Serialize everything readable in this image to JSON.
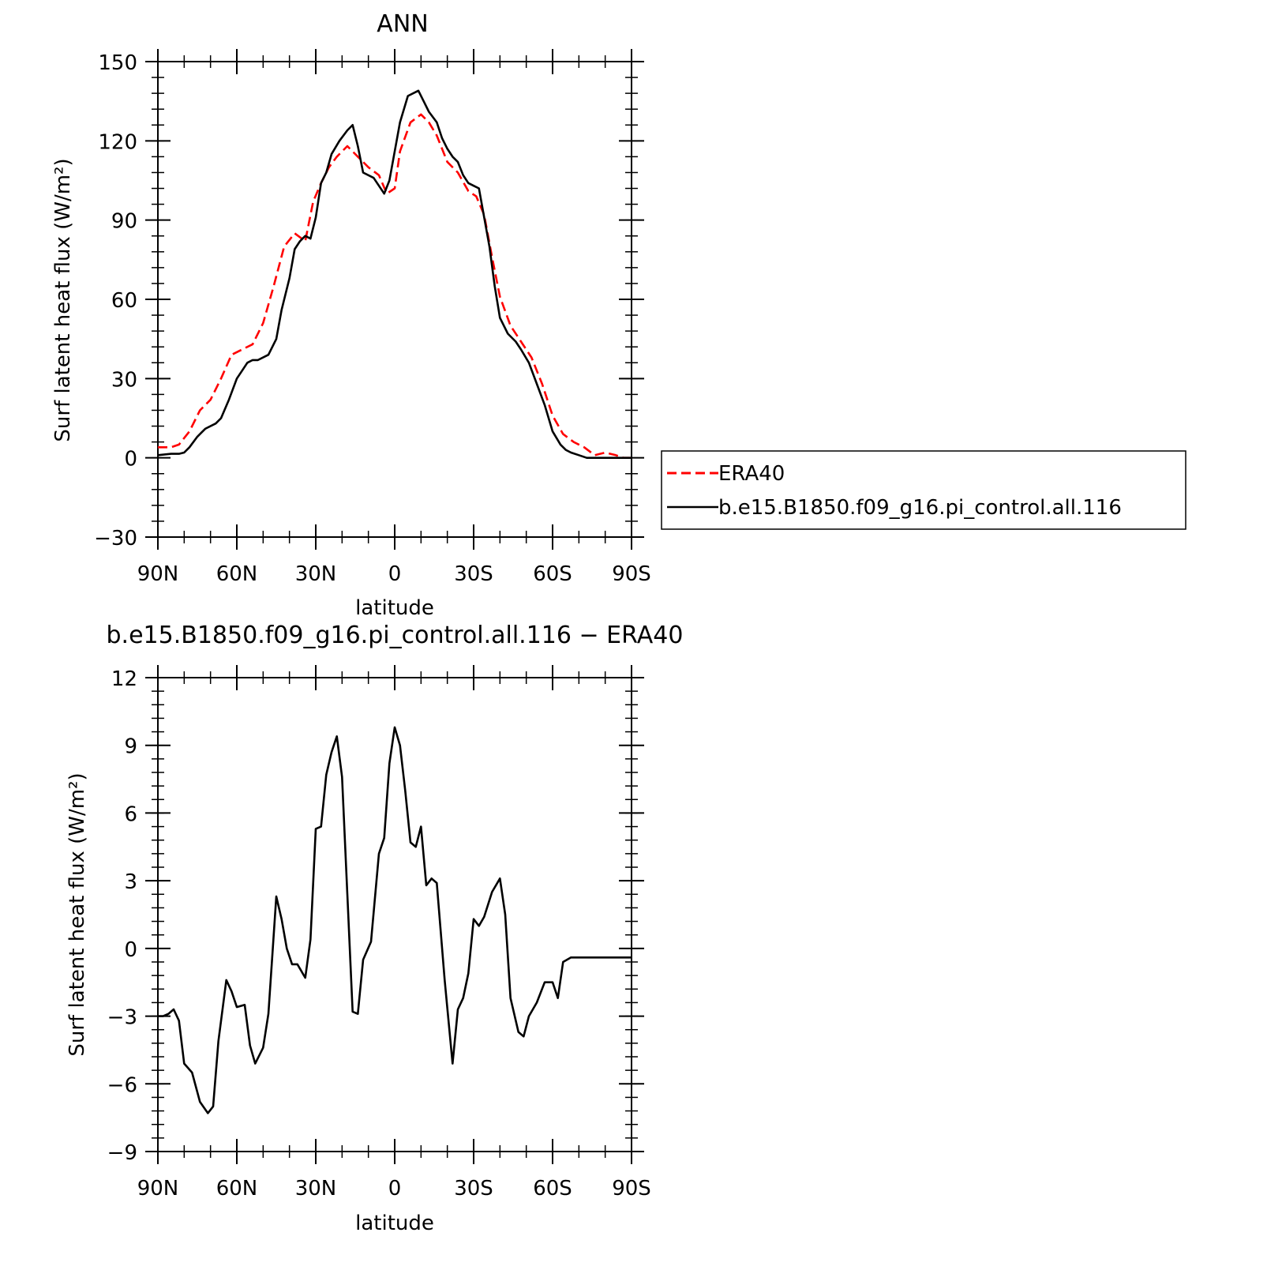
{
  "chart_data": [
    {
      "type": "line",
      "title": "ANN",
      "xlabel": "latitude",
      "ylabel": "Surf latent heat flux (W/m²)",
      "xlim": [
        90,
        -90
      ],
      "ylim": [
        -30,
        150
      ],
      "yticks": [
        "150",
        "120",
        "90",
        "60",
        "30",
        "0",
        "−30"
      ],
      "ytick_values": [
        150,
        120,
        90,
        60,
        30,
        0,
        -30
      ],
      "xticks": [
        "90N",
        "60N",
        "30N",
        "0",
        "30S",
        "60S",
        "90S"
      ],
      "xtick_values": [
        90,
        60,
        30,
        0,
        -30,
        -60,
        -90
      ],
      "legend": {
        "position": "right"
      },
      "series": [
        {
          "name": "ERA40",
          "color": "#ff0000",
          "dash": "dashed",
          "x": [
            90,
            85,
            82,
            78,
            74,
            70,
            66,
            62,
            58,
            54,
            50,
            46,
            42,
            38,
            34,
            31,
            28,
            25,
            22,
            18,
            14,
            12,
            10,
            6,
            3,
            0,
            -2,
            -6,
            -10,
            -13,
            -16,
            -20,
            -24,
            -28,
            -31,
            -34,
            -37,
            -40,
            -44,
            -48,
            -52,
            -56,
            -60,
            -64,
            -68,
            -72,
            -76,
            -80,
            -84,
            -87,
            -90
          ],
          "y": [
            4,
            4,
            5,
            10,
            18,
            22,
            30,
            39,
            41,
            43,
            51,
            65,
            80,
            85,
            82,
            97,
            104,
            110,
            114,
            118,
            114,
            112,
            110,
            107,
            100,
            102,
            116,
            127,
            130,
            127,
            122,
            112,
            108,
            101,
            99,
            92,
            76,
            61,
            50,
            44,
            38,
            28,
            16,
            9,
            6,
            4,
            1,
            2,
            1,
            0,
            0
          ]
        },
        {
          "name": "b.e15.B1850.f09_g16.pi_control.all.116",
          "color": "#000000",
          "dash": "solid",
          "x": [
            90,
            85,
            82,
            80,
            78,
            75,
            72,
            68,
            66,
            63,
            60,
            58,
            56,
            54,
            52,
            48,
            45,
            43,
            40,
            38,
            36,
            34,
            32,
            30,
            28,
            26,
            24,
            21,
            18,
            16,
            14,
            12,
            8,
            4,
            2,
            0,
            -2,
            -5,
            -9,
            -11,
            -13,
            -16,
            -18,
            -20,
            -22,
            -24,
            -26,
            -28,
            -30,
            -32,
            -36,
            -38,
            -40,
            -43,
            -46,
            -48,
            -51,
            -54,
            -57,
            -60,
            -63,
            -65,
            -67,
            -70,
            -73,
            -77,
            -80,
            -83,
            -86,
            -88,
            -90
          ],
          "y": [
            1,
            1.5,
            1.5,
            2,
            4,
            8,
            11,
            13,
            15,
            22,
            30,
            33,
            36,
            37,
            37,
            39,
            45,
            56,
            68,
            79,
            82,
            84,
            83,
            91,
            104,
            108,
            115,
            120,
            124,
            126,
            118,
            108,
            106,
            100,
            105,
            116,
            127,
            137,
            139,
            135,
            131,
            127,
            121,
            117,
            114,
            112,
            107,
            104,
            103,
            102,
            80,
            65,
            53,
            47,
            44,
            41,
            36,
            28,
            20,
            10,
            5,
            3,
            2,
            1,
            0,
            0,
            0,
            0,
            0,
            0,
            0
          ]
        }
      ]
    },
    {
      "type": "line",
      "title": "b.e15.B1850.f09_g16.pi_control.all.116 − ERA40",
      "xlabel": "latitude",
      "ylabel": "Surf latent heat flux (W/m²)",
      "xlim": [
        90,
        -90
      ],
      "ylim": [
        -9,
        12
      ],
      "yticks": [
        "12",
        "9",
        "6",
        "3",
        "0",
        "−3",
        "−6",
        "−9"
      ],
      "ytick_values": [
        12,
        9,
        6,
        3,
        0,
        -3,
        -6,
        -9
      ],
      "xticks": [
        "90N",
        "60N",
        "30N",
        "0",
        "30S",
        "60S",
        "90S"
      ],
      "xtick_values": [
        90,
        60,
        30,
        0,
        -30,
        -60,
        -90
      ],
      "series": [
        {
          "color": "#000000",
          "dash": "solid",
          "x": [
            90,
            88,
            86,
            84,
            82,
            80,
            77,
            74,
            71,
            69,
            67,
            64,
            62,
            60,
            57,
            55,
            53,
            50,
            48,
            45,
            43,
            41,
            39,
            37,
            34,
            32,
            30,
            28,
            26,
            24,
            22,
            20,
            18,
            16,
            14,
            12,
            9,
            6,
            4,
            2,
            0,
            -2,
            -4,
            -6,
            -8,
            -10,
            -12,
            -14,
            -16,
            -19,
            -22,
            -24,
            -26,
            -28,
            -30,
            -32,
            -34,
            -37,
            -40,
            -42,
            -44,
            -47,
            -49,
            -51,
            -54,
            -57,
            -60,
            -62,
            -64,
            -67,
            -69,
            -72,
            -75,
            -78,
            -81,
            -83,
            -85,
            -87,
            -88,
            -90
          ],
          "y": [
            -3,
            -3,
            -2.9,
            -2.7,
            -3.2,
            -5.1,
            -5.5,
            -6.8,
            -7.3,
            -7.0,
            -4.1,
            -1.4,
            -1.9,
            -2.6,
            -2.5,
            -4.3,
            -5.1,
            -4.4,
            -2.9,
            2.3,
            1.3,
            0.0,
            -0.7,
            -0.7,
            -1.3,
            0.4,
            5.3,
            5.4,
            7.7,
            8.7,
            9.4,
            7.6,
            2.4,
            -2.8,
            -2.9,
            -0.5,
            0.3,
            4.2,
            4.9,
            8.2,
            9.8,
            9.0,
            7.0,
            4.7,
            4.5,
            5.4,
            2.8,
            3.1,
            2.9,
            -1.4,
            -5.1,
            -2.7,
            -2.2,
            -1.1,
            1.3,
            1.0,
            1.4,
            2.5,
            3.1,
            1.5,
            -2.2,
            -3.7,
            -3.9,
            -3.0,
            -2.4,
            -1.5,
            -1.5,
            -2.2,
            -0.6,
            -0.4,
            -0.4,
            -0.4,
            -0.4,
            -0.4,
            -0.4,
            -0.4,
            -0.4,
            -0.4,
            -0.4,
            -0.4
          ]
        }
      ]
    }
  ]
}
